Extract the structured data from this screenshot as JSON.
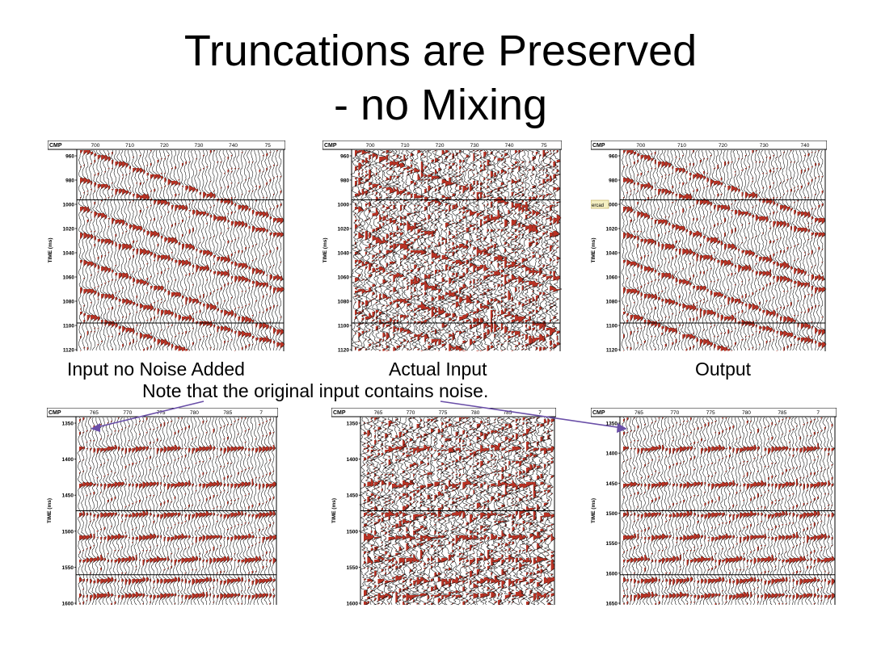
{
  "slide": {
    "title_line1": "Truncations are Preserved",
    "title_line2": "- no Mixing",
    "note": "Note that the original input contains noise.",
    "arrow_color": "#6a4fa8"
  },
  "colors": {
    "fill": "#b83224",
    "wiggle": "#111111"
  },
  "panels": [
    {
      "caption": "Input no Noise Added",
      "header_label": "CMP",
      "axis_label": "TIME (ms)",
      "x_ticks": [
        "700",
        "710",
        "720",
        "730",
        "740",
        "75"
      ],
      "y_ticks": [
        "960",
        "980",
        "1000",
        "1020",
        "1040",
        "1060",
        "1080",
        "1100",
        "1120"
      ],
      "noise": 0.15
    },
    {
      "caption": "Actual Input",
      "header_label": "CMP",
      "axis_label": "TIME (ms)",
      "x_ticks": [
        "700",
        "710",
        "720",
        "730",
        "740",
        "75"
      ],
      "y_ticks": [
        "960",
        "980",
        "1000",
        "1020",
        "1040",
        "1060",
        "1080",
        "1100",
        "1120"
      ],
      "noise": 0.85
    },
    {
      "caption": "Output",
      "header_label": "CMP",
      "axis_label": "TIME (ms)",
      "x_ticks": [
        "700",
        "710",
        "720",
        "730",
        "740"
      ],
      "y_ticks": [
        "960",
        "980",
        "1000",
        "1020",
        "1040",
        "1060",
        "1080",
        "1100",
        "1120"
      ],
      "tag": "ercad",
      "noise": 0.2
    },
    {
      "header_label": "CMP",
      "axis_label": "TIME (ms)",
      "x_ticks": [
        "765",
        "770",
        "775",
        "780",
        "785",
        "7"
      ],
      "y_ticks": [
        "1350",
        "1400",
        "1450",
        "1500",
        "1550",
        "1600"
      ],
      "noise": 0.15
    },
    {
      "header_label": "CMP",
      "axis_label": "TIME (ms)",
      "x_ticks": [
        "765",
        "770",
        "775",
        "780",
        "785",
        "7"
      ],
      "y_ticks": [
        "1350",
        "1400",
        "1450",
        "1500",
        "1550",
        "1600"
      ],
      "noise": 0.9
    },
    {
      "header_label": "CMP",
      "axis_label": "TIME (ms)",
      "x_ticks": [
        "765",
        "770",
        "775",
        "780",
        "785",
        "7"
      ],
      "y_ticks": [
        "1350",
        "1400",
        "1450",
        "1500",
        "1550",
        "1600",
        "1650"
      ],
      "noise": 0.2
    }
  ]
}
